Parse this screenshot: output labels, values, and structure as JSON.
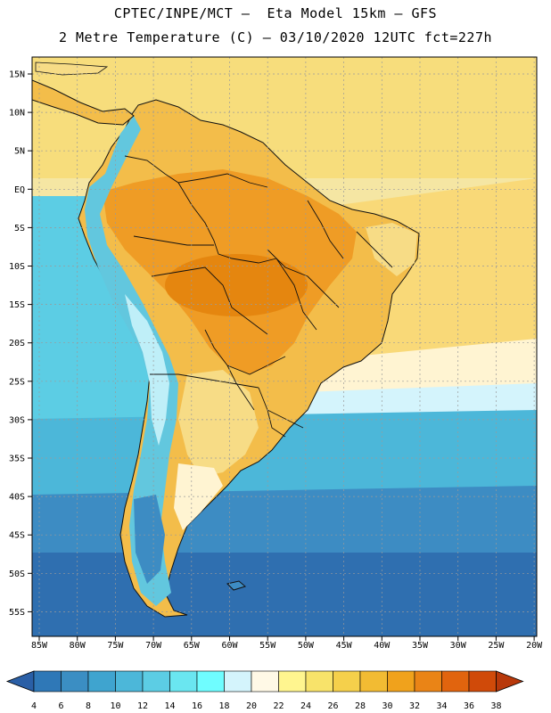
{
  "header": {
    "line1": "CPTEC/INPE/MCT —  Eta Model 15km — GFS",
    "line2": "2 Metre Temperature (C) — 03/10/2020 12UTC fct=227h"
  },
  "lat_labels": [
    "15N",
    "10N",
    "5N",
    "EQ",
    "5S",
    "10S",
    "15S",
    "20S",
    "25S",
    "30S",
    "35S",
    "40S",
    "45S",
    "50S",
    "55S"
  ],
  "lon_labels": [
    "85W",
    "80W",
    "75W",
    "70W",
    "65W",
    "60W",
    "55W",
    "50W",
    "45W",
    "40W",
    "35W",
    "30W",
    "25W",
    "20W"
  ],
  "colorbar": {
    "ticks": [
      "4",
      "6",
      "8",
      "10",
      "12",
      "14",
      "16",
      "18",
      "20",
      "22",
      "24",
      "26",
      "28",
      "30",
      "32",
      "34",
      "36",
      "38"
    ],
    "colors": [
      "#2a5fa6",
      "#2f78b7",
      "#3b8ec3",
      "#3fa4cf",
      "#4cb7d9",
      "#5ccde4",
      "#6ae6f0",
      "#6ffdff",
      "#d4f4fc",
      "#fff9e6",
      "#fff58f",
      "#f8e36a",
      "#f5d04b",
      "#f2bb33",
      "#f0a21c",
      "#ea8416",
      "#e1640e",
      "#d04a09",
      "#b8380a"
    ]
  },
  "map_colors": {
    "ocean_far_south": "#2f6fb0",
    "ocean_south": "#3d8cc3",
    "ocean_mid": "#4cb7d9",
    "ocean_warm": "#7cd9e9",
    "ocean_pale": "#d4f4fc",
    "ocean_tropical": "#f7dd7c",
    "ocean_equator": "#f8e78a",
    "land_hot": "#ef9c25",
    "land_warm": "#f3bd4a",
    "land_mild": "#f7dc86",
    "andes_cold": "#62c7de",
    "andes_snow": "#bfeff8",
    "borders": "#111111",
    "gridlines": "#9a9a9a"
  }
}
